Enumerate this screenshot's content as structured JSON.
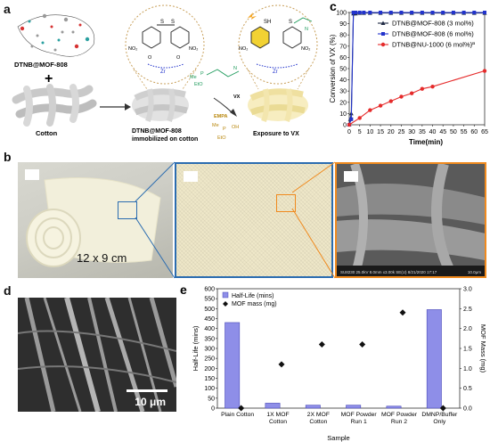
{
  "panels": {
    "a": {
      "label": "a",
      "mof_name": "DTNB@MOF-808",
      "plus": "+",
      "cotton": "Cotton",
      "immobilized_line1": "DTNB@MOF-808",
      "immobilized_line2": "immobilized on cotton",
      "exposure": "Exposure to VX",
      "vx": "VX",
      "empa": "EMPA",
      "zr": "Zr",
      "no2": "NO₂",
      "sh": "SH",
      "s": "S",
      "o": "O",
      "me": "Me",
      "eto": "EtO",
      "p": "P",
      "n": "N",
      "oh": "OH"
    },
    "b": {
      "label": "b",
      "size_text": "12 x 9 cm",
      "sem_caption": "SU8230 25.0kV 8.0mm x3.00k SE(U) 8/21/2020 17:17",
      "sem_scale": "10.0μm"
    },
    "d": {
      "label": "d",
      "scale_text": "10 μm"
    }
  },
  "colors": {
    "mof_line": "#1f2a44",
    "mof_808_6": "#2233cc",
    "nu1000": "#e52b2b",
    "bar_fill": "#8e8ee8",
    "bar_stroke": "#4a4ab8",
    "zoom_blue": "#2b6cb0",
    "zoom_orange": "#f08a1e",
    "bubble": "#c9a15c"
  },
  "chart_data": [
    {
      "panel": "c",
      "type": "line",
      "title": "",
      "xlabel": "Time(min)",
      "ylabel": "Conversion of VX (%)",
      "xlim": [
        0,
        65
      ],
      "ylim": [
        0,
        100
      ],
      "xticks": [
        0,
        5,
        10,
        15,
        20,
        25,
        30,
        35,
        40,
        45,
        50,
        55,
        60,
        65
      ],
      "yticks": [
        0,
        10,
        20,
        30,
        40,
        50,
        60,
        70,
        80,
        90,
        100
      ],
      "legend_position": "top-right",
      "grid": false,
      "series": [
        {
          "name": "DTNB@MOF-808 (3 mol%)",
          "color": "#1f2a44",
          "marker": "triangle",
          "points": [
            [
              0,
              0
            ],
            [
              0.5,
              5
            ],
            [
              1,
              10
            ],
            [
              2,
              99
            ],
            [
              3,
              99
            ],
            [
              5,
              99.5
            ],
            [
              7,
              99.5
            ],
            [
              10,
              99.5
            ],
            [
              15,
              99.5
            ],
            [
              20,
              99.5
            ],
            [
              25,
              99.5
            ],
            [
              30,
              99.5
            ],
            [
              35,
              99.5
            ],
            [
              40,
              99.5
            ],
            [
              45,
              99.5
            ],
            [
              50,
              99.5
            ],
            [
              55,
              99.5
            ],
            [
              60,
              99.5
            ],
            [
              65,
              99.5
            ]
          ]
        },
        {
          "name": "DTNB@MOF-808 (6 mol%)",
          "color": "#2233cc",
          "marker": "square",
          "points": [
            [
              0,
              0
            ],
            [
              1,
              5
            ],
            [
              2,
              100
            ],
            [
              3,
              100
            ],
            [
              5,
              100
            ],
            [
              7,
              100
            ],
            [
              10,
              100
            ],
            [
              15,
              100
            ],
            [
              20,
              100
            ],
            [
              25,
              100
            ],
            [
              30,
              100
            ],
            [
              35,
              100
            ],
            [
              40,
              100
            ],
            [
              45,
              100
            ],
            [
              50,
              100
            ],
            [
              55,
              100
            ],
            [
              60,
              100
            ],
            [
              65,
              100
            ]
          ]
        },
        {
          "name": "DTNB@NU-1000 (6 mol%)ª",
          "color": "#e52b2b",
          "marker": "circle",
          "points": [
            [
              0,
              0
            ],
            [
              5,
              6
            ],
            [
              10,
              13
            ],
            [
              15,
              17
            ],
            [
              20,
              21
            ],
            [
              25,
              25
            ],
            [
              30,
              28
            ],
            [
              35,
              32
            ],
            [
              40,
              34
            ],
            [
              65,
              48
            ]
          ]
        }
      ]
    },
    {
      "panel": "e",
      "type": "bar",
      "title": "",
      "xlabel": "Sample",
      "ylabel": "Half-Life (mins)",
      "y2label": "MOF Mass (mg)",
      "ylim": [
        0,
        600
      ],
      "y2lim": [
        0,
        3.0
      ],
      "yticks": [
        0,
        50,
        100,
        150,
        200,
        250,
        300,
        350,
        400,
        450,
        500,
        550,
        600
      ],
      "y2ticks": [
        "0.0",
        "0.5",
        "1.0",
        "1.5",
        "2.0",
        "2.5",
        "3.0"
      ],
      "legend_position": "top-left",
      "categories": [
        [
          "Plain Cotton"
        ],
        [
          "1X MOF",
          "Cotton"
        ],
        [
          "2X MOF",
          "Cotton"
        ],
        [
          "MOF Powder",
          "Run 1"
        ],
        [
          "MOF Powder",
          "Run 2"
        ],
        [
          "DMNP/Buffer",
          "Only"
        ]
      ],
      "series": [
        {
          "name": "Half-Life (mins)",
          "kind": "bar",
          "values": [
            430,
            25,
            15,
            15,
            10,
            495
          ]
        },
        {
          "name": "MOF mass (mg)",
          "kind": "diamond",
          "axis": "y2",
          "values": [
            0,
            1.1,
            1.6,
            1.6,
            2.4,
            0
          ]
        }
      ]
    }
  ]
}
